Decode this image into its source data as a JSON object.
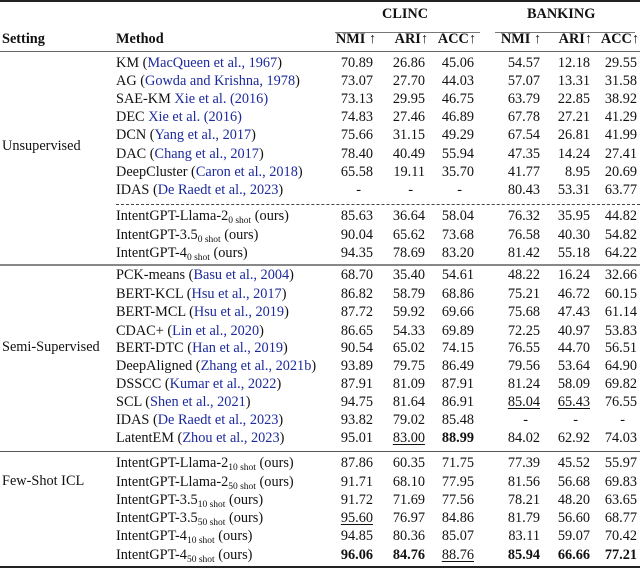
{
  "header": {
    "setting": "Setting",
    "method": "Method",
    "groups": [
      "CLINC",
      "BANKING"
    ],
    "metrics": [
      "NMI ↑",
      "ARI↑",
      "ACC↑",
      "NMI ↑",
      "ARI↑",
      "ACC↑"
    ]
  },
  "sections": [
    {
      "setting": "Unsupervised",
      "rows": [
        {
          "method": "KM",
          "cite": "MacQueen et al., 1967",
          "paren": true,
          "values": [
            "70.89",
            "26.86",
            "45.06",
            "54.57",
            "12.18",
            "29.55"
          ]
        },
        {
          "method": "AG",
          "cite": "Gowda and Krishna, 1978",
          "paren": true,
          "values": [
            "73.07",
            "27.70",
            "44.03",
            "57.07",
            "13.31",
            "31.58"
          ]
        },
        {
          "method": "SAE-KM",
          "cite": "Xie et al. (2016)",
          "paren": false,
          "values": [
            "73.13",
            "29.95",
            "46.75",
            "63.79",
            "22.85",
            "38.92"
          ]
        },
        {
          "method": "DEC",
          "cite": "Xie et al. (2016)",
          "paren": false,
          "values": [
            "74.83",
            "27.46",
            "46.89",
            "67.78",
            "27.21",
            "41.29"
          ]
        },
        {
          "method": "DCN",
          "cite": "Yang et al., 2017",
          "paren": true,
          "values": [
            "75.66",
            "31.15",
            "49.29",
            "67.54",
            "26.81",
            "41.99"
          ]
        },
        {
          "method": "DAC",
          "cite": "Chang et al., 2017",
          "paren": true,
          "values": [
            "78.40",
            "40.49",
            "55.94",
            "47.35",
            "14.24",
            "27.41"
          ]
        },
        {
          "method": "DeepCluster",
          "cite": "Caron et al., 2018",
          "paren": true,
          "values": [
            "65.58",
            "19.11",
            "35.70",
            "41.77",
            "8.95",
            "20.69"
          ]
        },
        {
          "method": "IDAS",
          "cite": "De Raedt et al., 2023",
          "paren": true,
          "values": [
            "-",
            "-",
            "-",
            "80.43",
            "53.31",
            "63.77"
          ]
        },
        {
          "method": "IntentGPT-Llama-2",
          "sub": "0 shot",
          "suffix": "(ours)",
          "values": [
            "85.63",
            "36.64",
            "58.04",
            "76.32",
            "35.95",
            "44.82"
          ]
        },
        {
          "method": "IntentGPT-3.5",
          "sub": "0 shot",
          "suffix": "(ours)",
          "values": [
            "90.04",
            "65.62",
            "73.68",
            "76.58",
            "40.30",
            "54.82"
          ]
        },
        {
          "method": "IntentGPT-4",
          "sub": "0 shot",
          "suffix": "(ours)",
          "values": [
            "94.35",
            "78.69",
            "83.20",
            "81.42",
            "55.18",
            "64.22"
          ]
        }
      ]
    },
    {
      "setting": "Semi-Supervised",
      "rows": [
        {
          "method": "PCK-means",
          "cite": "Basu et al., 2004",
          "paren": true,
          "values": [
            "68.70",
            "35.40",
            "54.61",
            "48.22",
            "16.24",
            "32.66"
          ]
        },
        {
          "method": "BERT-KCL",
          "cite": "Hsu et al., 2017",
          "paren": true,
          "values": [
            "86.82",
            "58.79",
            "68.86",
            "75.21",
            "46.72",
            "60.15"
          ]
        },
        {
          "method": "BERT-MCL",
          "cite": "Hsu et al., 2019",
          "paren": true,
          "values": [
            "87.72",
            "59.92",
            "69.66",
            "75.68",
            "47.43",
            "61.14"
          ]
        },
        {
          "method": "CDAC+",
          "cite": "Lin et al., 2020",
          "paren": true,
          "values": [
            "86.65",
            "54.33",
            "69.89",
            "72.25",
            "40.97",
            "53.83"
          ]
        },
        {
          "method": "BERT-DTC",
          "cite": "Han et al., 2019",
          "paren": true,
          "values": [
            "90.54",
            "65.02",
            "74.15",
            "76.55",
            "44.70",
            "56.51"
          ]
        },
        {
          "method": "DeepAligned",
          "cite": "Zhang et al., 2021b",
          "paren": true,
          "values": [
            "93.89",
            "79.75",
            "86.49",
            "79.56",
            "53.64",
            "64.90"
          ]
        },
        {
          "method": "DSSCC",
          "cite": "Kumar et al., 2022",
          "paren": true,
          "values": [
            "87.91",
            "81.09",
            "87.91",
            "81.24",
            "58.09",
            "69.82"
          ]
        },
        {
          "method": "SCL",
          "cite": "Shen et al., 2021",
          "paren": true,
          "values": [
            "94.75",
            "81.64",
            "86.91",
            "85.04",
            "65.43",
            "76.55"
          ],
          "underline": [
            3,
            4
          ]
        },
        {
          "method": "IDAS",
          "cite": "De Raedt et al., 2023",
          "paren": true,
          "values": [
            "93.82",
            "79.02",
            "85.48",
            "-",
            "-",
            "-"
          ]
        },
        {
          "method": "LatentEM",
          "cite": "Zhou et al., 2023",
          "paren": true,
          "values": [
            "95.01",
            "83.00",
            "88.99",
            "84.02",
            "62.92",
            "74.03"
          ],
          "underline": [
            1
          ],
          "bold": [
            2
          ]
        }
      ]
    },
    {
      "setting": "Few-Shot ICL",
      "rows": [
        {
          "method": "IntentGPT-Llama-2",
          "sub": "10 shot",
          "suffix": "(ours)",
          "values": [
            "87.86",
            "60.35",
            "71.75",
            "77.39",
            "45.52",
            "55.97"
          ]
        },
        {
          "method": "IntentGPT-Llama-2",
          "sub": "50 shot",
          "suffix": "(ours)",
          "values": [
            "91.71",
            "68.10",
            "77.95",
            "81.56",
            "56.68",
            "69.83"
          ]
        },
        {
          "method": "IntentGPT-3.5",
          "sub": "10 shot",
          "suffix": "(ours)",
          "values": [
            "91.72",
            "71.69",
            "77.56",
            "78.21",
            "48.20",
            "63.65"
          ]
        },
        {
          "method": "IntentGPT-3.5",
          "sub": "50 shot",
          "suffix": "(ours)",
          "values": [
            "95.60",
            "76.97",
            "84.86",
            "81.79",
            "56.60",
            "68.77"
          ],
          "underline": [
            0
          ]
        },
        {
          "method": "IntentGPT-4",
          "sub": "10 shot",
          "suffix": "(ours)",
          "values": [
            "94.85",
            "80.36",
            "85.07",
            "83.11",
            "59.07",
            "70.42"
          ]
        },
        {
          "method": "IntentGPT-4",
          "sub": "50 shot",
          "suffix": "(ours)",
          "values": [
            "96.06",
            "84.76",
            "88.76",
            "85.94",
            "66.66",
            "77.21"
          ],
          "underline": [
            2
          ],
          "bold": [
            0,
            1,
            3,
            4,
            5
          ]
        }
      ]
    }
  ],
  "colors": {
    "citation": "#1c2a9c",
    "text": "#111111"
  }
}
